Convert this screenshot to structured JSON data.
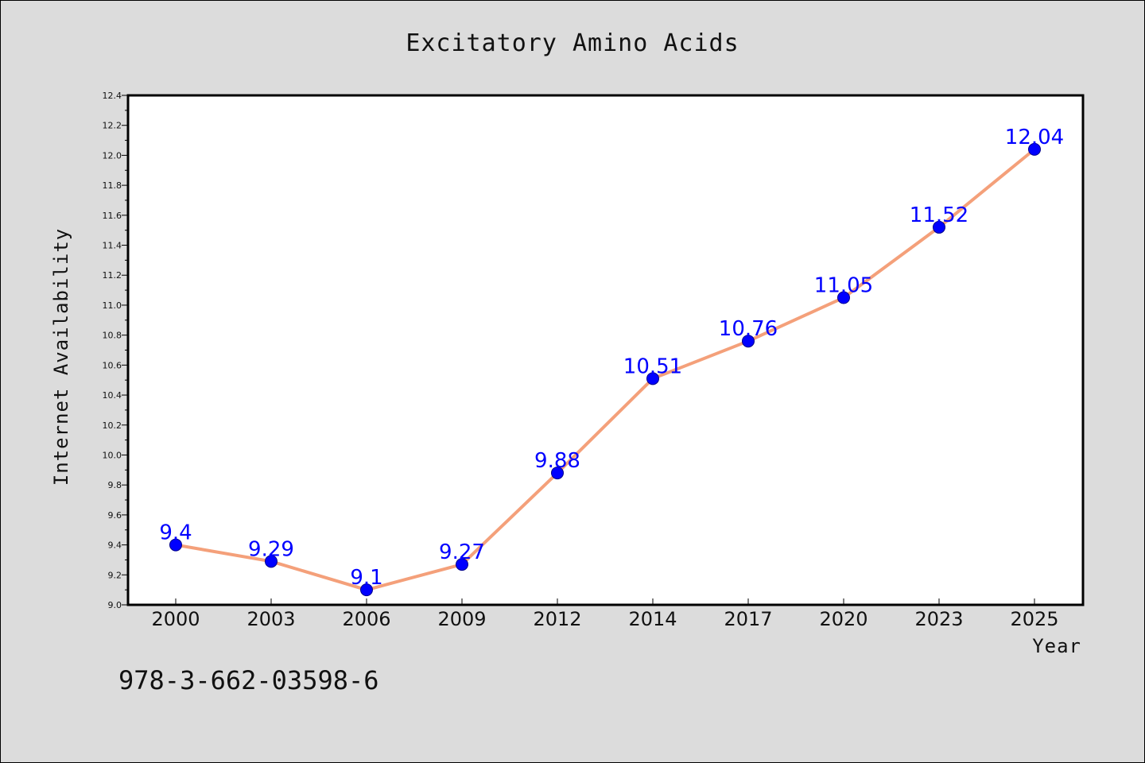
{
  "colors": {
    "background": "#dcdcdc",
    "plot_background": "#ffffff",
    "line": "#f4a07a",
    "marker": "#0000ff",
    "data_label": "#0000ff"
  },
  "isbn": "978-3-662-03598-6",
  "chart_data": {
    "type": "line",
    "title": "Excitatory Amino Acids",
    "xlabel": "Year",
    "ylabel": "Internet Availability",
    "categories": [
      "2000",
      "2003",
      "2006",
      "2009",
      "2012",
      "2014",
      "2017",
      "2020",
      "2023",
      "2025"
    ],
    "series": [
      {
        "values": [
          9.4,
          9.29,
          9.1,
          9.27,
          9.88,
          10.51,
          10.76,
          11.05,
          11.52,
          12.04
        ],
        "labels": [
          "9.4",
          "9.29",
          "9.1",
          "9.27",
          "9.88",
          "10.51",
          "10.76",
          "11.05",
          "11.52",
          "12.04"
        ]
      }
    ],
    "ylim": [
      9.0,
      12.4
    ],
    "yticks": [
      "9.0",
      "9.2",
      "9.4",
      "9.6",
      "9.8",
      "10.0",
      "10.2",
      "10.4",
      "10.6",
      "10.8",
      "11.0",
      "11.2",
      "11.4",
      "11.6",
      "11.8",
      "12.0",
      "12.2",
      "12.4"
    ],
    "grid": false,
    "legend": "none"
  }
}
